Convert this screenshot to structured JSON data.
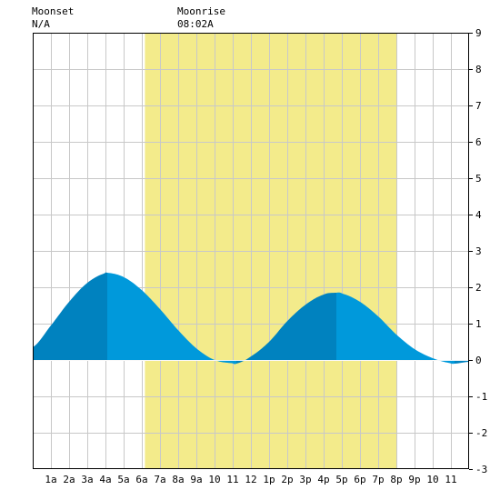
{
  "header": {
    "moonset_label": "Moonset",
    "moonset_value": "N/A",
    "moonrise_label": "Moonrise",
    "moonrise_value": "08:02A"
  },
  "chart_data": {
    "type": "area",
    "title": "",
    "xlabel": "",
    "ylabel": "",
    "xlim": [
      0,
      24
    ],
    "ylim": [
      -3,
      9
    ],
    "y_ticks": [
      -3,
      -2,
      -1,
      0,
      1,
      2,
      3,
      4,
      5,
      6,
      7,
      8,
      9
    ],
    "y_axis_side": "right",
    "x_tick_labels": [
      "1a",
      "2a",
      "3a",
      "4a",
      "5a",
      "6a",
      "7a",
      "8a",
      "9a",
      "10",
      "11",
      "12",
      "1p",
      "2p",
      "3p",
      "4p",
      "5p",
      "6p",
      "7p",
      "8p",
      "9p",
      "10",
      "11"
    ],
    "grid": true,
    "daylight_span_hours": [
      6.17,
      20.0
    ],
    "extremes": [
      {
        "hour": 4.1,
        "height": 2.4,
        "kind": "high"
      },
      {
        "hour": 11.2,
        "height": -0.1,
        "kind": "low"
      },
      {
        "hour": 16.7,
        "height": 1.85,
        "kind": "high"
      },
      {
        "hour": 23.2,
        "height": -0.1,
        "kind": "low"
      }
    ],
    "series": [
      {
        "x": [
          0,
          1,
          2,
          3,
          4,
          4.1,
          5,
          6,
          7,
          8,
          9,
          10,
          11,
          11.2,
          12,
          13,
          14,
          15,
          16,
          16.7,
          17,
          18,
          19,
          20,
          21,
          22,
          23,
          23.2,
          24
        ],
        "y": [
          0.35,
          0.95,
          1.6,
          2.12,
          2.39,
          2.4,
          2.28,
          1.92,
          1.4,
          0.82,
          0.32,
          0.0,
          -0.09,
          -0.1,
          0.1,
          0.5,
          1.07,
          1.52,
          1.8,
          1.85,
          1.83,
          1.6,
          1.2,
          0.7,
          0.3,
          0.05,
          -0.09,
          -0.1,
          -0.05
        ]
      }
    ],
    "colors": {
      "daylight": "#F3EB8B",
      "water_rising": "#0082BF",
      "water_falling": "#0099DB",
      "grid": "#C8C8C8",
      "frame": "#000000",
      "zero_line": "#FFFFFF"
    }
  }
}
